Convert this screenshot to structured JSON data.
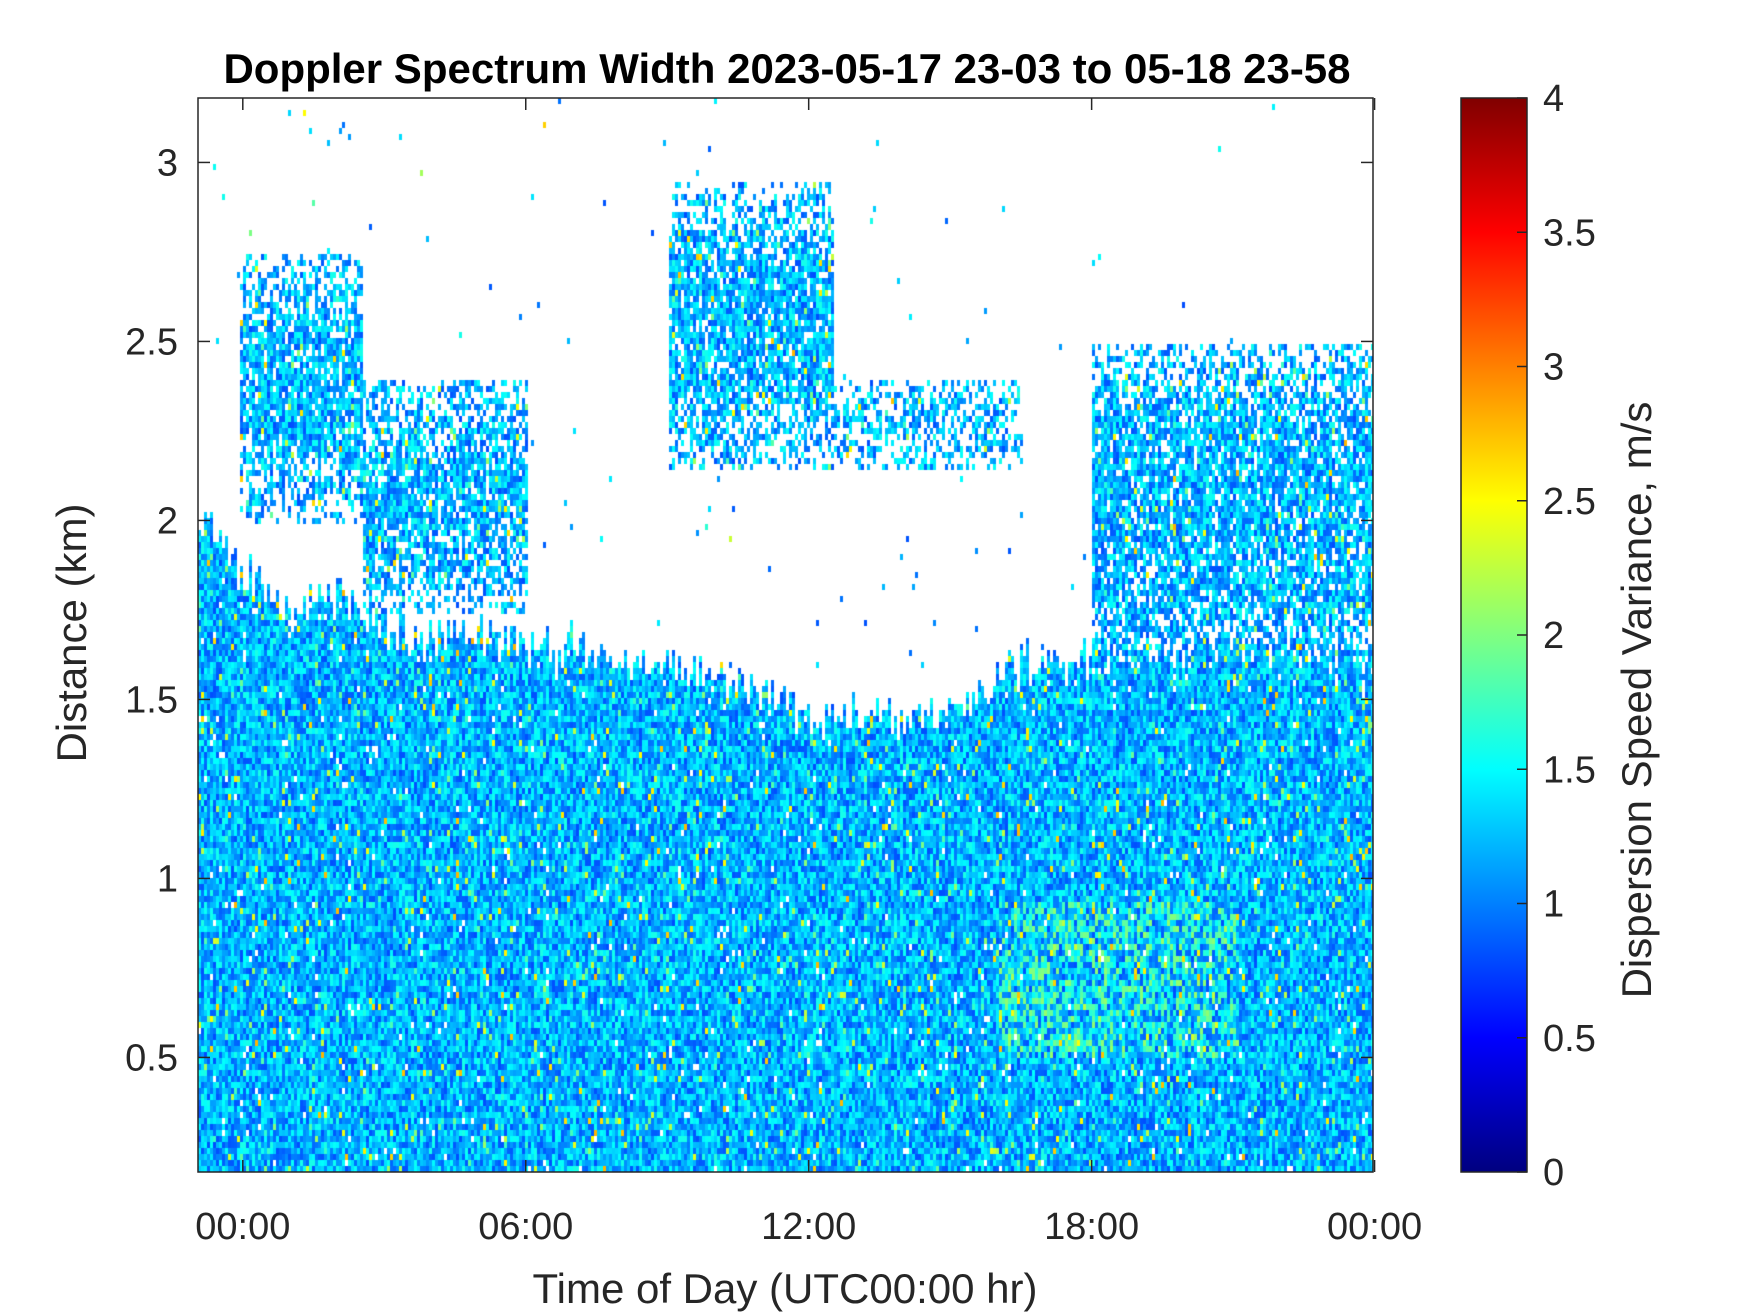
{
  "chart_data": {
    "type": "heatmap",
    "title": "Doppler Spectrum Width 2023-05-17 23-03 to 05-18 23-58",
    "xlabel": "Time of Day (UTC00:00 hr)",
    "ylabel": "Distance (km)",
    "colorbar_label": "Dispersion Speed Variance, m/s",
    "colormap": "jet",
    "xlim": [
      "-0:57",
      "23:58"
    ],
    "x_ticks": [
      "00:00",
      "06:00",
      "12:00",
      "18:00",
      "00:00"
    ],
    "ylim": [
      0.18,
      3.18
    ],
    "y_ticks": [
      0.5,
      1,
      1.5,
      2,
      2.5,
      3
    ],
    "y_tick_labels": [
      "0.5",
      "1",
      "1.5",
      "2",
      "2.5",
      "3"
    ],
    "clim": [
      0,
      4
    ],
    "c_ticks": [
      0,
      0.5,
      1,
      1.5,
      2,
      2.5,
      3,
      3.5,
      4
    ],
    "c_tick_labels": [
      "0",
      "0.5",
      "1",
      "1.5",
      "2",
      "2.5",
      "3",
      "3.5",
      "4"
    ],
    "typical_value_range": [
      0.8,
      1.6
    ],
    "signal_top_km": {
      "hours": [
        -0.95,
        0,
        1,
        2,
        3,
        4,
        5,
        6,
        7,
        8,
        9,
        10,
        11,
        12,
        13,
        14,
        15,
        16,
        17,
        18,
        19,
        20,
        21,
        22,
        23,
        23.97
      ],
      "height": [
        2.05,
        1.85,
        1.75,
        1.8,
        1.7,
        1.65,
        1.7,
        1.65,
        1.65,
        1.6,
        1.62,
        1.6,
        1.55,
        1.45,
        1.45,
        1.45,
        1.48,
        1.58,
        1.62,
        1.62,
        1.62,
        1.62,
        1.65,
        1.68,
        1.62,
        1.62
      ]
    },
    "cloud_regions": [
      {
        "hours": [
          -0.1,
          2.5
        ],
        "km": [
          2.0,
          2.75
        ]
      },
      {
        "hours": [
          2.5,
          6.0
        ],
        "km": [
          1.75,
          2.4
        ]
      },
      {
        "hours": [
          9.0,
          12.5
        ],
        "km": [
          2.15,
          2.95
        ]
      },
      {
        "hours": [
          12.5,
          16.5
        ],
        "km": [
          2.15,
          2.4
        ]
      },
      {
        "hours": [
          18.0,
          24.0
        ],
        "km": [
          1.55,
          2.5
        ]
      }
    ],
    "grid": false,
    "legend": "colorbar-right"
  }
}
